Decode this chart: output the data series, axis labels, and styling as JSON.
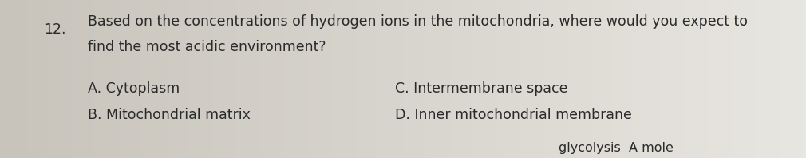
{
  "background_color_left": "#c8c4bc",
  "background_color_right": "#e8e6e0",
  "question_number": "12.",
  "question_line1": "Based on the concentrations of hydrogen ions in the mitochondria, where would you expect to",
  "question_line2": "find the most acidic environment?",
  "option_a": "A. Cytoplasm",
  "option_b": "B. Mitochondrial matrix",
  "option_c": "C. Intermembrane space",
  "option_d": "D. Inner mitochondrial membrane",
  "footer_text": "glycolysis  A mole",
  "text_color": "#2a2a2a",
  "font_size": 12.5
}
